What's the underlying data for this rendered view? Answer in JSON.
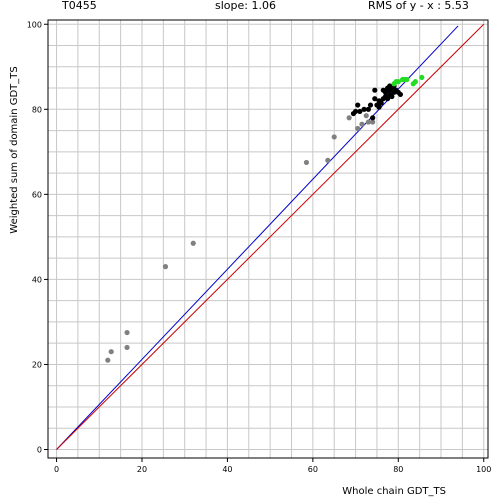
{
  "header": {
    "target": "T0455",
    "slope": "slope: 1.06",
    "rms": "RMS of  y - x : 5.53"
  },
  "chart_data": {
    "type": "scatter",
    "title": "",
    "xlabel": "Whole chain GDT_TS",
    "ylabel": "Weighted sum of domain GDT_TS",
    "xlim": [
      -2,
      101
    ],
    "ylim": [
      -2,
      101
    ],
    "x_ticks": [
      0,
      20,
      40,
      60,
      80,
      100
    ],
    "y_ticks": [
      0,
      20,
      40,
      60,
      80,
      100
    ],
    "grid": true,
    "grid_step": 5,
    "colors": {
      "grid": "#c8c8c8",
      "fit_line": "#0000cc",
      "diagonal": "#cc0000",
      "gray_points": "#808080",
      "black_points": "#000000",
      "green_points": "#22dd22"
    },
    "lines": [
      {
        "kind": "fit",
        "slope": 1.06,
        "x": [
          0,
          94
        ],
        "y": [
          0,
          99.6
        ]
      },
      {
        "kind": "diagonal",
        "x": [
          0,
          100
        ],
        "y": [
          0,
          100
        ]
      }
    ],
    "series": [
      {
        "color_key": "gray_points",
        "points": [
          [
            12.0,
            21.0
          ],
          [
            12.8,
            23.0
          ],
          [
            16.5,
            24.0
          ],
          [
            16.5,
            27.5
          ],
          [
            25.5,
            43.0
          ],
          [
            32.0,
            48.5
          ],
          [
            58.5,
            67.5
          ],
          [
            63.5,
            68.0
          ],
          [
            65.0,
            73.5
          ],
          [
            68.5,
            78.0
          ],
          [
            70.5,
            75.5
          ],
          [
            71.5,
            76.5
          ],
          [
            73.0,
            77.0
          ],
          [
            74.0,
            77.0
          ],
          [
            72.5,
            78.5
          ]
        ]
      },
      {
        "color_key": "black_points",
        "points": [
          [
            69.5,
            79.0
          ],
          [
            70.0,
            79.5
          ],
          [
            70.5,
            81.0
          ],
          [
            71.0,
            79.5
          ],
          [
            72.0,
            80.0
          ],
          [
            73.0,
            80.0
          ],
          [
            74.0,
            78.0
          ],
          [
            73.5,
            81.0
          ],
          [
            74.5,
            82.5
          ],
          [
            74.5,
            84.5
          ],
          [
            75.0,
            81.0
          ],
          [
            75.5,
            80.5
          ],
          [
            75.5,
            82.0
          ],
          [
            76.0,
            81.5
          ],
          [
            76.5,
            82.5
          ],
          [
            77.0,
            83.0
          ],
          [
            77.0,
            84.0
          ],
          [
            77.5,
            85.0
          ],
          [
            77.5,
            82.5
          ],
          [
            78.0,
            83.5
          ],
          [
            78.0,
            84.5
          ],
          [
            78.5,
            85.0
          ],
          [
            78.5,
            83.0
          ],
          [
            79.0,
            84.0
          ],
          [
            79.0,
            85.5
          ],
          [
            79.5,
            84.5
          ],
          [
            80.0,
            84.0
          ],
          [
            80.5,
            83.5
          ],
          [
            76.5,
            84.5
          ],
          [
            78.0,
            85.5
          ]
        ]
      },
      {
        "color_key": "green_points",
        "points": [
          [
            79.0,
            86.0
          ],
          [
            79.5,
            86.5
          ],
          [
            80.0,
            86.5
          ],
          [
            81.0,
            87.0
          ],
          [
            81.5,
            87.0
          ],
          [
            82.0,
            87.0
          ],
          [
            83.5,
            86.0
          ],
          [
            84.0,
            86.5
          ],
          [
            85.5,
            87.5
          ]
        ]
      }
    ]
  }
}
